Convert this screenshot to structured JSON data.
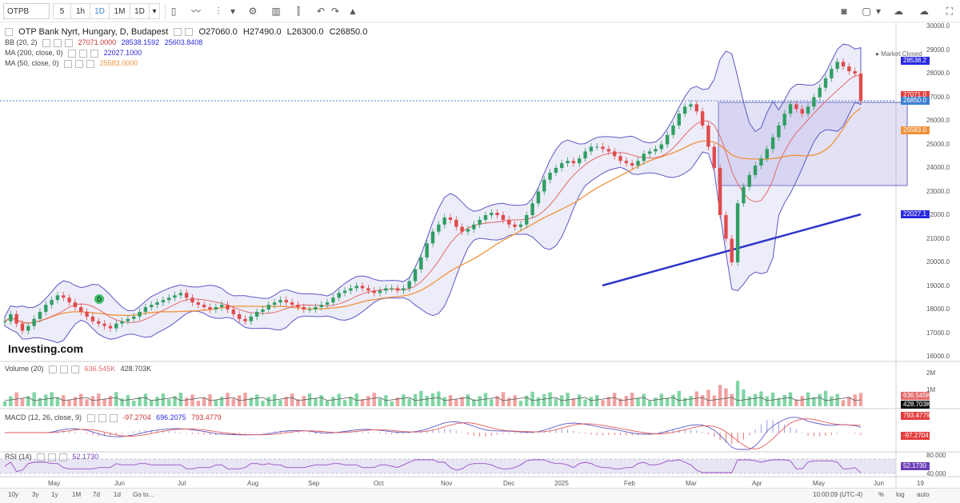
{
  "toolbar": {
    "symbol": "OTPB",
    "intervals": [
      "5",
      "1h",
      "1D",
      "1M",
      "1D"
    ],
    "active_interval": "1D",
    "icons": [
      "candles-icon",
      "compare-icon",
      "indicators-icon",
      "dropdown-icon",
      "settings-icon",
      "chart-type-icon",
      "templates-icon",
      "undo-icon",
      "redo-icon",
      "alert-icon",
      "camera-icon",
      "layout-icon",
      "cloud-save-icon",
      "cloud-load-icon",
      "fullscreen-icon"
    ]
  },
  "header": {
    "title": "OTP Bank Nyrt, Hungary, D, Budapest",
    "open": "O27060.0",
    "high": "H27490.0",
    "low": "L26300.0",
    "close": "C26850.0",
    "status": "Market Closed"
  },
  "indicators": {
    "bb": {
      "label": "BB (20, 2)",
      "v1": "27071.0000",
      "v2": "28538.1592",
      "v3": "25603.8408"
    },
    "ma200": {
      "label": "MA (200, close, 0)",
      "v1": "22027.1000"
    },
    "ma50": {
      "label": "MA (50, close, 0)",
      "v1": "25583.0000"
    },
    "volume": {
      "label": "Volume (20)",
      "v1": "636.545K",
      "v2": "428.703K"
    },
    "macd": {
      "label": "MACD (12, 26, close, 9)",
      "v1": "-97.2704",
      "v2": "696.2075",
      "v3": "793.4779"
    },
    "rsi": {
      "label": "RSI (14)",
      "v1": "52.1730"
    }
  },
  "price_axis": [
    "30000.0",
    "29000.0",
    "28000.0",
    "27000.0",
    "26000.0",
    "25000.0",
    "24000.0",
    "23000.0",
    "22000.0",
    "21000.0",
    "20000.0",
    "19000.0",
    "18000.0",
    "17000.0",
    "16000.0"
  ],
  "price_tags": [
    {
      "text": "28538.2",
      "color": "#2a2ae0"
    },
    {
      "text": "27071.0",
      "color": "#e23d3d"
    },
    {
      "text": "26850.0",
      "color": "#3f7fd1"
    },
    {
      "text": "25603.8",
      "color": "#2a2ae0"
    },
    {
      "text": "25583.0",
      "color": "#f0923a"
    },
    {
      "text": "22027.1",
      "color": "#2a2ae0"
    }
  ],
  "volume_axis": [
    "2M",
    "1M"
  ],
  "volume_tags": [
    {
      "text": "636.545K",
      "color": "#e36a6a"
    },
    {
      "text": "428.703K",
      "color": "#111111"
    }
  ],
  "macd_tags": [
    {
      "text": "793.4779",
      "color": "#e23d3d"
    },
    {
      "text": "-97.2704",
      "color": "#e23d3d"
    }
  ],
  "rsi_axis": [
    "80.000",
    "40.000"
  ],
  "rsi_tags": [
    {
      "text": "52.1730",
      "color": "#6a3fb5"
    }
  ],
  "time_axis": [
    "May",
    "Jun",
    "Jul",
    "Aug",
    "Sep",
    "Oct",
    "Nov",
    "Dec",
    "2025",
    "Feb",
    "Mar",
    "Apr",
    "May",
    "Jun",
    "19"
  ],
  "watermark": "Investing.com",
  "marker": "D",
  "bottombar": {
    "ranges": [
      "10y",
      "3y",
      "1y",
      "1M",
      "7d",
      "1d",
      "Go to..."
    ],
    "time": "10:00:09 (UTC-4)",
    "options": [
      "%",
      "log",
      "auto"
    ]
  },
  "chart_data": {
    "type": "candlestick",
    "close_prices": [
      17500,
      17800,
      17400,
      17100,
      17300,
      17600,
      17900,
      18200,
      18400,
      18600,
      18500,
      18300,
      18100,
      17900,
      17700,
      17500,
      17400,
      17300,
      17200,
      17400,
      17500,
      17600,
      17700,
      17900,
      18100,
      18200,
      18300,
      18400,
      18500,
      18600,
      18700,
      18500,
      18300,
      18200,
      18100,
      18000,
      18100,
      18200,
      18000,
      17800,
      17600,
      17500,
      17700,
      17900,
      18000,
      18200,
      18300,
      18400,
      18300,
      18200,
      18100,
      18000,
      18000,
      18100,
      18200,
      18300,
      18500,
      18700,
      18800,
      18900,
      19000,
      18900,
      18800,
      18700,
      18800,
      18900,
      18900,
      18800,
      18900,
      19200,
      19700,
      20200,
      20800,
      21300,
      21600,
      21900,
      21800,
      21500,
      21300,
      21400,
      21600,
      21800,
      22000,
      22100,
      22000,
      21800,
      21600,
      21500,
      21600,
      22000,
      22500,
      23000,
      23500,
      23800,
      24000,
      24200,
      24300,
      24200,
      24400,
      24700,
      24900,
      24900,
      24800,
      24700,
      24500,
      24300,
      24200,
      24100,
      24300,
      24600,
      24700,
      24800,
      25000,
      25400,
      25800,
      26300,
      26600,
      26700,
      26400,
      25800,
      24900,
      24000,
      22000,
      21000,
      20000,
      22500,
      23200,
      23700,
      24100,
      24400,
      24800,
      25300,
      25800,
      26300,
      26700,
      26500,
      26300,
      26600,
      27000,
      27400,
      27800,
      28200,
      28500,
      28300,
      28100,
      28000,
      26850
    ]
  }
}
